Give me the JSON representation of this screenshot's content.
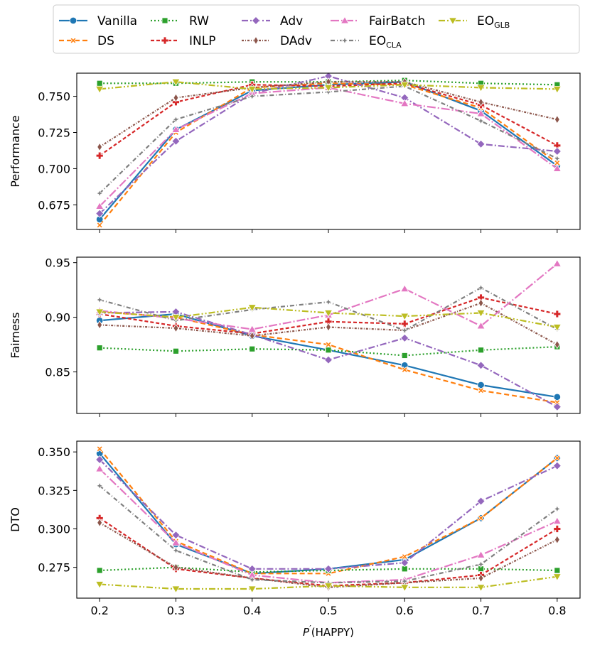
{
  "chart_data": {
    "type": "line",
    "x": [
      0.2,
      0.3,
      0.4,
      0.5,
      0.6,
      0.7,
      0.8
    ],
    "x_ticks": [
      "0.2",
      "0.3",
      "0.4",
      "0.5",
      "0.6",
      "0.7",
      "0.8"
    ],
    "xlabel": {
      "main": "P",
      "sup": "′",
      "rest": "(HAPPY)"
    },
    "legend": {
      "placement": "top",
      "columns": 6,
      "entries": [
        {
          "text": "Vanilla",
          "sub": ""
        },
        {
          "text": "DS",
          "sub": ""
        },
        {
          "text": "RW",
          "sub": ""
        },
        {
          "text": "INLP",
          "sub": ""
        },
        {
          "text": "Adv",
          "sub": ""
        },
        {
          "text": "DAdv",
          "sub": ""
        },
        {
          "text": "FairBatch",
          "sub": ""
        },
        {
          "text": "EO",
          "sub": "CLA"
        },
        {
          "text": "EO",
          "sub": "GLB"
        }
      ]
    },
    "series_styles": [
      {
        "color": "#1f77b4",
        "dash": "",
        "marker": "circle"
      },
      {
        "color": "#ff7f0e",
        "dash": "7,4",
        "marker": "x"
      },
      {
        "color": "#2ca02c",
        "dash": "2,3",
        "marker": "square"
      },
      {
        "color": "#d62728",
        "dash": "5,3",
        "marker": "plus"
      },
      {
        "color": "#9467bd",
        "dash": "9,3,2,3",
        "marker": "diamond"
      },
      {
        "color": "#8c564b",
        "dash": "3,2,1,2",
        "marker": "thin_diamond"
      },
      {
        "color": "#e377c2",
        "dash": "12,3,2,3",
        "marker": "triangle_up"
      },
      {
        "color": "#7f7f7f",
        "dash": "6,3,1,3",
        "marker": "star"
      },
      {
        "color": "#bcbd22",
        "dash": "9,3,2,3,2,3",
        "marker": "triangle_down"
      }
    ],
    "panels": [
      {
        "ylabel": "Performance",
        "ylim": [
          0.658,
          0.766
        ],
        "yticks": [
          0.675,
          0.7,
          0.725,
          0.75
        ],
        "ytick_labels": [
          "0.675",
          "0.700",
          "0.725",
          "0.750"
        ],
        "series": [
          {
            "values": [
              0.665,
              0.727,
              0.754,
              0.758,
              0.76,
              0.74,
              0.702
            ]
          },
          {
            "values": [
              0.661,
              0.725,
              0.756,
              0.759,
              0.758,
              0.742,
              0.704
            ]
          },
          {
            "values": [
              0.759,
              0.759,
              0.76,
              0.76,
              0.761,
              0.759,
              0.758
            ]
          },
          {
            "values": [
              0.709,
              0.746,
              0.758,
              0.757,
              0.759,
              0.744,
              0.716
            ]
          },
          {
            "values": [
              0.669,
              0.719,
              0.752,
              0.764,
              0.749,
              0.717,
              0.712
            ]
          },
          {
            "values": [
              0.715,
              0.749,
              0.756,
              0.76,
              0.76,
              0.746,
              0.734
            ]
          },
          {
            "values": [
              0.674,
              0.727,
              0.752,
              0.756,
              0.745,
              0.738,
              0.7
            ]
          },
          {
            "values": [
              0.683,
              0.734,
              0.75,
              0.753,
              0.757,
              0.733,
              0.707
            ]
          },
          {
            "values": [
              0.755,
              0.76,
              0.755,
              0.756,
              0.758,
              0.756,
              0.755
            ]
          }
        ]
      },
      {
        "ylabel": "Fairness",
        "ylim": [
          0.812,
          0.955
        ],
        "yticks": [
          0.85,
          0.9,
          0.95
        ],
        "ytick_labels": [
          "0.85",
          "0.90",
          "0.95"
        ],
        "series": [
          {
            "values": [
              0.897,
              0.903,
              0.883,
              0.87,
              0.856,
              0.838,
              0.827
            ]
          },
          {
            "values": [
              0.905,
              0.9,
              0.884,
              0.875,
              0.852,
              0.833,
              0.822
            ]
          },
          {
            "values": [
              0.872,
              0.869,
              0.871,
              0.87,
              0.865,
              0.87,
              0.873
            ]
          },
          {
            "values": [
              0.903,
              0.892,
              0.885,
              0.896,
              0.894,
              0.918,
              0.903
            ]
          },
          {
            "values": [
              0.904,
              0.905,
              0.884,
              0.861,
              0.881,
              0.856,
              0.818
            ]
          },
          {
            "values": [
              0.893,
              0.89,
              0.883,
              0.891,
              0.888,
              0.913,
              0.875
            ]
          },
          {
            "values": [
              0.906,
              0.899,
              0.889,
              0.902,
              0.926,
              0.892,
              0.949
            ]
          },
          {
            "values": [
              0.916,
              0.897,
              0.907,
              0.914,
              0.888,
              0.927,
              0.889
            ]
          },
          {
            "values": [
              0.905,
              0.9,
              0.909,
              0.904,
              0.901,
              0.904,
              0.891
            ]
          }
        ]
      },
      {
        "ylabel": "DTO",
        "ylim": [
          0.255,
          0.357
        ],
        "yticks": [
          0.275,
          0.3,
          0.325,
          0.35
        ],
        "ytick_labels": [
          "0.275",
          "0.300",
          "0.325",
          "0.350"
        ],
        "series": [
          {
            "values": [
              0.349,
              0.29,
              0.271,
              0.274,
              0.28,
              0.307,
              0.346
            ]
          },
          {
            "values": [
              0.352,
              0.292,
              0.271,
              0.271,
              0.282,
              0.307,
              0.346
            ]
          },
          {
            "values": [
              0.273,
              0.275,
              0.272,
              0.273,
              0.274,
              0.274,
              0.273
            ]
          },
          {
            "values": [
              0.307,
              0.274,
              0.268,
              0.263,
              0.265,
              0.27,
              0.3
            ]
          },
          {
            "values": [
              0.345,
              0.296,
              0.274,
              0.274,
              0.278,
              0.318,
              0.341
            ]
          },
          {
            "values": [
              0.304,
              0.275,
              0.268,
              0.262,
              0.265,
              0.268,
              0.293
            ]
          },
          {
            "values": [
              0.339,
              0.291,
              0.27,
              0.265,
              0.267,
              0.283,
              0.305
            ]
          },
          {
            "values": [
              0.328,
              0.286,
              0.267,
              0.265,
              0.266,
              0.277,
              0.313
            ]
          },
          {
            "values": [
              0.264,
              0.261,
              0.261,
              0.263,
              0.262,
              0.262,
              0.269
            ]
          }
        ]
      }
    ]
  }
}
